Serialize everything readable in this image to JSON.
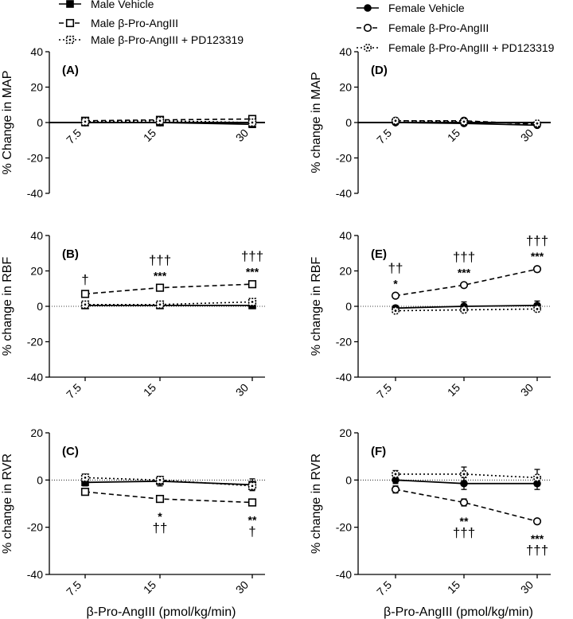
{
  "chart_data": [
    {
      "id": "A",
      "type": "line",
      "panel_label": "(A)",
      "sex": "male",
      "ylabel": "% Change in MAP",
      "xlabel": "",
      "ylim": [
        -40,
        40
      ],
      "yticks": [
        "40",
        "20",
        "0",
        "-20",
        "-40"
      ],
      "categories": [
        "7.5",
        "15",
        "30"
      ],
      "zero_line": "solid",
      "series": [
        {
          "name": "Male Vehicle",
          "values": [
            0,
            0,
            -1
          ],
          "err": [
            0.5,
            0.5,
            0.6
          ]
        },
        {
          "name": "Male β-Pro-AngIII",
          "values": [
            1,
            1.5,
            2
          ],
          "err": [
            0.5,
            0.5,
            0.5
          ]
        },
        {
          "name": "Male β-Pro-AngIII + PD123319",
          "values": [
            0.5,
            1,
            0
          ],
          "err": [
            0.5,
            0.5,
            0.5
          ]
        }
      ],
      "annotations": []
    },
    {
      "id": "B",
      "type": "line",
      "panel_label": "(B)",
      "sex": "male",
      "ylabel": "% change in RBF",
      "xlabel": "",
      "ylim": [
        -40,
        40
      ],
      "yticks": [
        "40",
        "20",
        "0",
        "-20",
        "-40"
      ],
      "categories": [
        "7.5",
        "15",
        "30"
      ],
      "zero_line": "dotted",
      "series": [
        {
          "name": "Male Vehicle",
          "values": [
            0.5,
            0.5,
            0.5
          ],
          "err": [
            0.8,
            0.8,
            0.8
          ]
        },
        {
          "name": "Male β-Pro-AngIII",
          "values": [
            7,
            10.5,
            12.5
          ],
          "err": [
            1,
            1,
            1.2
          ]
        },
        {
          "name": "Male β-Pro-AngIII + PD123319",
          "values": [
            1,
            1,
            2.5
          ],
          "err": [
            0.8,
            0.8,
            0.8
          ]
        }
      ],
      "annotations": [
        {
          "cat": 0,
          "lines": [
            "†"
          ],
          "anchor": "above_series",
          "series": 1
        },
        {
          "cat": 1,
          "lines": [
            "†††",
            "***"
          ],
          "anchor": "above_series",
          "series": 1
        },
        {
          "cat": 2,
          "lines": [
            "†††",
            "***"
          ],
          "anchor": "above_series",
          "series": 1
        }
      ]
    },
    {
      "id": "C",
      "type": "line",
      "panel_label": "(C)",
      "sex": "male",
      "ylabel": "% change in RVR",
      "xlabel": "β-Pro-AngIII (pmol/kg/min)",
      "ylim": [
        -40,
        20
      ],
      "yticks": [
        "20",
        "0",
        "-20",
        "-40"
      ],
      "categories": [
        "7.5",
        "15",
        "30"
      ],
      "zero_line": "dotted",
      "series": [
        {
          "name": "Male Vehicle",
          "values": [
            -1,
            -0.5,
            -2
          ],
          "err": [
            1.5,
            2,
            2.5
          ]
        },
        {
          "name": "Male β-Pro-AngIII",
          "values": [
            -5,
            -8,
            -9.5
          ],
          "err": [
            1,
            1,
            1
          ]
        },
        {
          "name": "Male β-Pro-AngIII + PD123319",
          "values": [
            1,
            0,
            -2.5
          ],
          "err": [
            1.5,
            1.5,
            1.5
          ]
        }
      ],
      "annotations": [
        {
          "cat": 1,
          "lines": [
            "*",
            "††"
          ],
          "anchor": "below_series",
          "series": 1
        },
        {
          "cat": 2,
          "lines": [
            "**",
            "†"
          ],
          "anchor": "below_series",
          "series": 1
        }
      ]
    },
    {
      "id": "D",
      "type": "line",
      "panel_label": "(D)",
      "sex": "female",
      "ylabel": "% change in MAP",
      "xlabel": "",
      "ylim": [
        -40,
        40
      ],
      "yticks": [
        "40",
        "20",
        "0",
        "-20",
        "-40"
      ],
      "categories": [
        "7.5",
        "15",
        "30"
      ],
      "zero_line": "solid",
      "series": [
        {
          "name": "Female Vehicle",
          "values": [
            0,
            -0.5,
            -1.5
          ],
          "err": [
            0.5,
            0.5,
            0.5
          ]
        },
        {
          "name": "Female β-Pro-AngIII",
          "values": [
            1,
            1,
            -1
          ],
          "err": [
            0.5,
            0.5,
            0.5
          ]
        },
        {
          "name": "Female β-Pro-AngIII + PD123319",
          "values": [
            1,
            0.5,
            -0.5
          ],
          "err": [
            0.5,
            0.5,
            0.5
          ]
        }
      ],
      "annotations": []
    },
    {
      "id": "E",
      "type": "line",
      "panel_label": "(E)",
      "sex": "female",
      "ylabel": "% change in RBF",
      "xlabel": "",
      "ylim": [
        -40,
        40
      ],
      "yticks": [
        "40",
        "20",
        "0",
        "-20",
        "-40"
      ],
      "categories": [
        "7.5",
        "15",
        "30"
      ],
      "zero_line": "dotted",
      "series": [
        {
          "name": "Female Vehicle",
          "values": [
            -1,
            0,
            0.5
          ],
          "err": [
            1.5,
            2.5,
            2.5
          ]
        },
        {
          "name": "Female β-Pro-AngIII",
          "values": [
            6,
            12,
            21
          ],
          "err": [
            1,
            1.2,
            1.5
          ]
        },
        {
          "name": "Female β-Pro-AngIII + PD123319",
          "values": [
            -2.5,
            -2,
            -1.5
          ],
          "err": [
            1,
            1.5,
            1.5
          ]
        }
      ],
      "annotations": [
        {
          "cat": 0,
          "lines": [
            "††",
            "*"
          ],
          "anchor": "above_series",
          "series": 1
        },
        {
          "cat": 1,
          "lines": [
            "†††",
            "***"
          ],
          "anchor": "above_series",
          "series": 1
        },
        {
          "cat": 2,
          "lines": [
            "†††",
            "***"
          ],
          "anchor": "above_series",
          "series": 1
        }
      ]
    },
    {
      "id": "F",
      "type": "line",
      "panel_label": "(F)",
      "sex": "female",
      "ylabel": "% change in RVR",
      "xlabel": "β-Pro-AngIII (pmol/kg/min)",
      "ylim": [
        -40,
        20
      ],
      "yticks": [
        "20",
        "0",
        "-20",
        "-40"
      ],
      "categories": [
        "7.5",
        "15",
        "30"
      ],
      "zero_line": "dotted",
      "series": [
        {
          "name": "Female Vehicle",
          "values": [
            0,
            -1.5,
            -1.5
          ],
          "err": [
            1.5,
            2.5,
            2.5
          ]
        },
        {
          "name": "Female β-Pro-AngIII",
          "values": [
            -4,
            -9.5,
            -17.5
          ],
          "err": [
            1.5,
            1.5,
            1
          ]
        },
        {
          "name": "Female β-Pro-AngIII + PD123319",
          "values": [
            2.5,
            2.5,
            1
          ],
          "err": [
            1.5,
            3,
            3.5
          ]
        }
      ],
      "annotations": [
        {
          "cat": 1,
          "lines": [
            "**",
            "†††"
          ],
          "anchor": "below_series",
          "series": 1
        },
        {
          "cat": 2,
          "lines": [
            "***",
            "†††"
          ],
          "anchor": "below_series",
          "series": 1
        }
      ]
    }
  ],
  "legends": {
    "male": [
      {
        "name": "Male Vehicle",
        "marker": "square-filled",
        "line": "solid"
      },
      {
        "name": "Male β-Pro-AngIII",
        "marker": "square-open",
        "line": "dashed"
      },
      {
        "name": "Male β-Pro-AngIII + PD123319",
        "marker": "square-dotted",
        "line": "dotted"
      }
    ],
    "female": [
      {
        "name": "Female Vehicle",
        "marker": "circle-filled",
        "line": "solid"
      },
      {
        "name": "Female β-Pro-AngIII",
        "marker": "circle-open",
        "line": "dashed"
      },
      {
        "name": "Female β-Pro-AngIII + PD123319",
        "marker": "circle-dotted",
        "line": "dotted"
      }
    ]
  },
  "colors": {
    "ink": "#000000",
    "background": "#ffffff"
  }
}
